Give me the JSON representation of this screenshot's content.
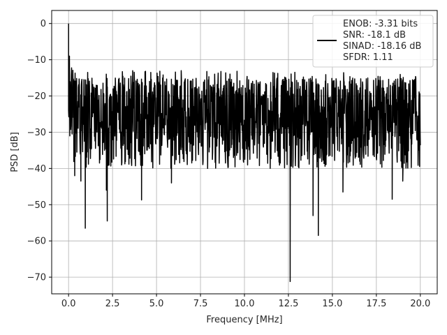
{
  "chart_data": {
    "type": "line",
    "title": "",
    "xlabel": "Frequency [MHz]",
    "ylabel": "PSD [dB]",
    "xlim": [
      -0.96,
      20.96
    ],
    "ylim": [
      -74.6,
      3.6
    ],
    "xticks": [
      0.0,
      2.5,
      5.0,
      7.5,
      10.0,
      12.5,
      15.0,
      17.5,
      20.0
    ],
    "xtick_labels": [
      "0.0",
      "2.5",
      "5.0",
      "7.5",
      "10.0",
      "12.5",
      "15.0",
      "17.5",
      "20.0"
    ],
    "yticks": [
      0,
      -10,
      -20,
      -30,
      -40,
      -50,
      -60,
      -70
    ],
    "ytick_labels": [
      "0",
      "−10",
      "−20",
      "−30",
      "−40",
      "−50",
      "−60",
      "−70"
    ],
    "grid": true,
    "legend": {
      "placement": "top-right",
      "entries": [
        "ENOB: -3.31 bits",
        "SNR: -18.1 dB",
        "SINAD: -18.16 dB",
        "SFDR: 1.11"
      ]
    },
    "series": [
      {
        "color": "#000000",
        "description": "noise-like PSD, 0–20 MHz, mostly -15 to -35 dB",
        "x_range": [
          0,
          20
        ],
        "noise_floor_range": [
          -35,
          -15
        ],
        "peaks": [
          {
            "x": 0.0,
            "y": 0.0
          },
          {
            "x": 0.05,
            "y": -9
          }
        ],
        "dips": [
          {
            "x": 0.35,
            "y": -42
          },
          {
            "x": 0.7,
            "y": -43.5
          },
          {
            "x": 0.95,
            "y": -56.5
          },
          {
            "x": 2.2,
            "y": -54.5
          },
          {
            "x": 2.15,
            "y": -46
          },
          {
            "x": 4.15,
            "y": -48.7
          },
          {
            "x": 5.85,
            "y": -44
          },
          {
            "x": 12.6,
            "y": -71.2
          },
          {
            "x": 12.6,
            "y": -63
          },
          {
            "x": 13.9,
            "y": -53
          },
          {
            "x": 14.2,
            "y": -58.5
          },
          {
            "x": 15.6,
            "y": -46.5
          },
          {
            "x": 18.4,
            "y": -48.5
          },
          {
            "x": 19.0,
            "y": -43.5
          }
        ]
      }
    ]
  }
}
